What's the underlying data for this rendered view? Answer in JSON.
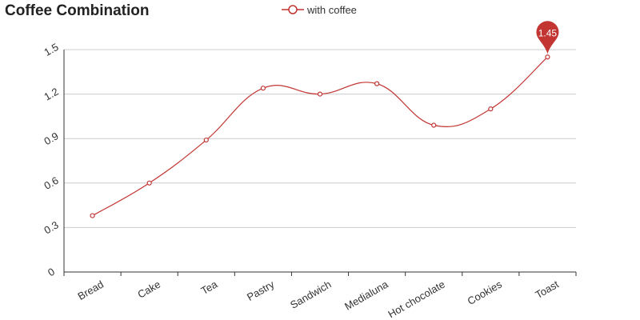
{
  "chart_data": {
    "type": "line",
    "title": "Coffee Combination",
    "categories": [
      "Bread",
      "Cake",
      "Tea",
      "Pastry",
      "Sandwich",
      "Medialuna",
      "Hot chocolate",
      "Cookies",
      "Toast"
    ],
    "series": [
      {
        "name": "with coffee",
        "values": [
          0.38,
          0.6,
          0.89,
          1.24,
          1.2,
          1.27,
          0.99,
          1.1,
          1.45
        ]
      }
    ],
    "ylim": [
      0,
      1.5
    ],
    "yticks": [
      0,
      0.3,
      0.6,
      0.9,
      1.2,
      1.5
    ],
    "ytick_labels": [
      "0",
      "0.3",
      "0.6",
      "0.9",
      "1.2",
      "1.5"
    ],
    "smooth": true,
    "grid": true,
    "legend_position": "top-center",
    "max_marker_label": "1.45",
    "colors": {
      "line": "#c23531",
      "grid": "#cccccc",
      "axis": "#333333",
      "text": "#333333"
    }
  }
}
